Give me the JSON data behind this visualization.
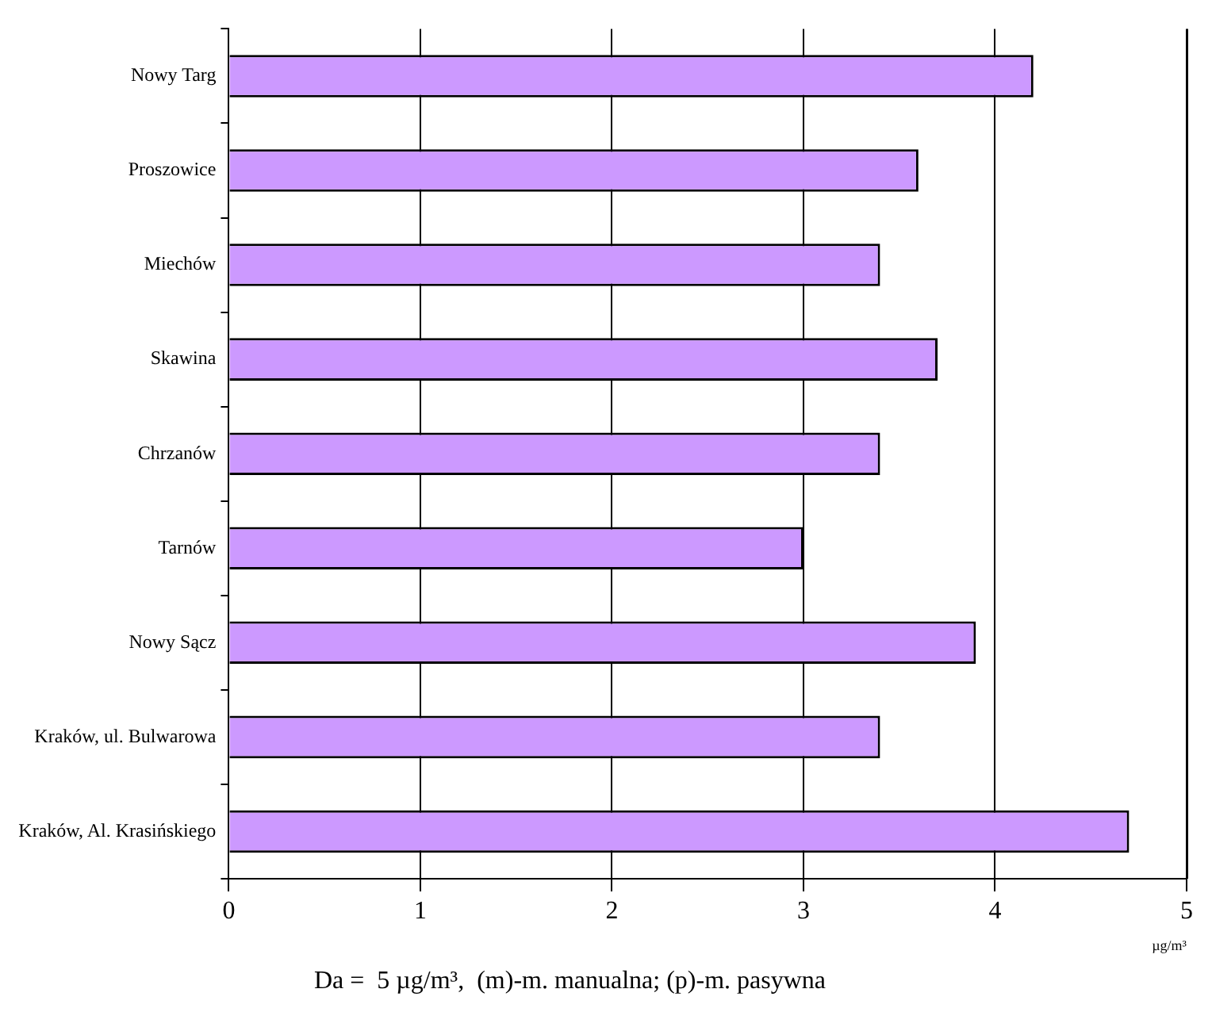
{
  "chart_data": {
    "type": "bar",
    "orientation": "horizontal",
    "categories": [
      "Nowy Targ",
      "Proszowice",
      "Miechów",
      "Skawina",
      "Chrzanów",
      "Tarnów",
      "Nowy Sącz",
      "Kraków, ul. Bulwarowa",
      "Kraków, Al. Krasińskiego"
    ],
    "values": [
      4.2,
      3.6,
      3.4,
      3.7,
      3.4,
      3.0,
      3.9,
      3.4,
      4.7
    ],
    "color": "#cc99ff",
    "xlim": [
      0,
      5
    ],
    "xticks": [
      0,
      1,
      2,
      3,
      4,
      5
    ],
    "xlabel": "µg/m³",
    "grid": "x",
    "annotations": [
      "Da =  5 µg/m³,  (m)-m. manualna; (p)-m. pasywna"
    ]
  }
}
